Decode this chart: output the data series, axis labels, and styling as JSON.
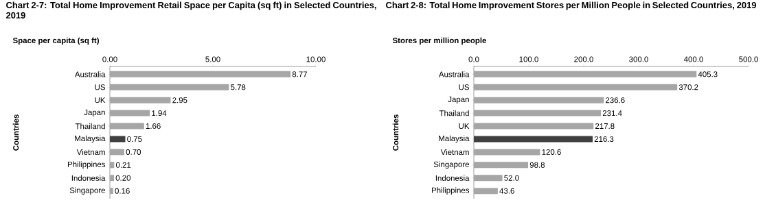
{
  "chart_data": [
    {
      "type": "bar",
      "orientation": "horizontal",
      "title": "Chart 2-7: Total Home Improvement Retail Space per Capita (sq ft) in Selected Countries, 2019",
      "xlabel": "Space per capita (sq ft)",
      "ylabel": "Countries",
      "categories": [
        "Australia",
        "US",
        "UK",
        "Japan",
        "Thailand",
        "Malaysia",
        "Vietnam",
        "Philippines",
        "Indonesia",
        "Singapore"
      ],
      "values": [
        8.77,
        5.78,
        2.95,
        1.94,
        1.66,
        0.75,
        0.7,
        0.21,
        0.2,
        0.16
      ],
      "value_labels": [
        "8.77",
        "5.78",
        "2.95",
        "1.94",
        "1.66",
        "0.75",
        "0.70",
        "0.21",
        "0.20",
        "0.16"
      ],
      "colors": [
        "#a6a6a6",
        "#a6a6a6",
        "#a6a6a6",
        "#a6a6a6",
        "#a6a6a6",
        "#404040",
        "#a6a6a6",
        "#a6a6a6",
        "#a6a6a6",
        "#a6a6a6"
      ],
      "xlim": [
        0,
        10
      ],
      "xticks": [
        {
          "value": 0,
          "label": "0.00"
        },
        {
          "value": 5,
          "label": "5.00"
        },
        {
          "value": 10,
          "label": "10.00"
        }
      ]
    },
    {
      "type": "bar",
      "orientation": "horizontal",
      "title": "Chart 2-8: Total Home Improvement Stores per Million People in Selected Countries, 2019",
      "xlabel": "Stores per million people",
      "ylabel": "Countries",
      "categories": [
        "Australia",
        "US",
        "Japan",
        "Thailand",
        "UK",
        "Malaysia",
        "Vietnam",
        "Singapore",
        "Indonesia",
        "Philippines"
      ],
      "values": [
        405.3,
        370.2,
        236.6,
        231.4,
        217.8,
        216.3,
        120.6,
        98.8,
        52.0,
        43.6
      ],
      "value_labels": [
        "405.3",
        "370.2",
        "236.6",
        "231.4",
        "217.8",
        "216.3",
        "120.6",
        "98.8",
        "52.0",
        "43.6"
      ],
      "colors": [
        "#a6a6a6",
        "#a6a6a6",
        "#a6a6a6",
        "#a6a6a6",
        "#a6a6a6",
        "#404040",
        "#a6a6a6",
        "#a6a6a6",
        "#a6a6a6",
        "#a6a6a6"
      ],
      "xlim": [
        0,
        500
      ],
      "xticks": [
        {
          "value": 0,
          "label": "0.0"
        },
        {
          "value": 100,
          "label": "100.0"
        },
        {
          "value": 200,
          "label": "200.0"
        },
        {
          "value": 300,
          "label": "300.0"
        },
        {
          "value": 400,
          "label": "400.0"
        },
        {
          "value": 500,
          "label": "500.0"
        }
      ]
    }
  ]
}
